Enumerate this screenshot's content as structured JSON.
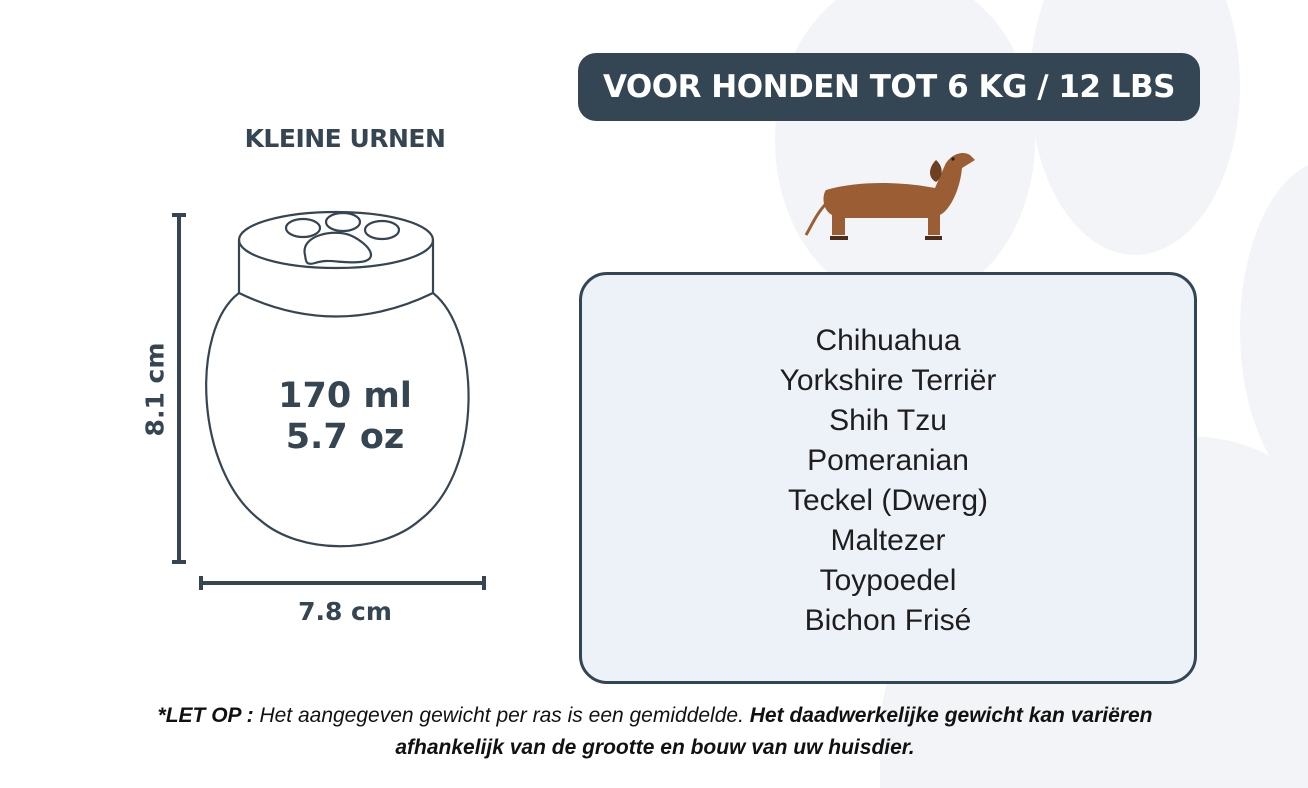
{
  "header": {
    "title": "VOOR HONDEN TOT 6 KG / 12 LBS"
  },
  "urn": {
    "subtitle": "KLEINE URNEN",
    "volume_ml": "170 ml",
    "volume_oz": "5.7 oz",
    "height": "8.1 cm",
    "width": "7.8 cm"
  },
  "breeds": [
    "Chihuahua",
    "Yorkshire Terriër",
    "Shih Tzu",
    "Pomeranian",
    "Teckel (Dwerg)",
    "Maltezer",
    "Toypoedel",
    "Bichon Frisé"
  ],
  "note": {
    "prefix": "*LET OP :",
    "text": " Het aangegeven gewicht per ras is een gemiddelde. ",
    "bold": "Het daadwerkelijke gewicht kan variëren afhankelijk van de grootte en bouw van uw huisdier."
  },
  "colors": {
    "dark": "#344653",
    "panel": "#edf1f8",
    "paw_bg": "#f3f4f7",
    "dog": "#9b5e34"
  },
  "icons": {
    "background": "paw-print-icon",
    "dog": "dachshund-icon",
    "urn": "paw-urn-icon"
  }
}
